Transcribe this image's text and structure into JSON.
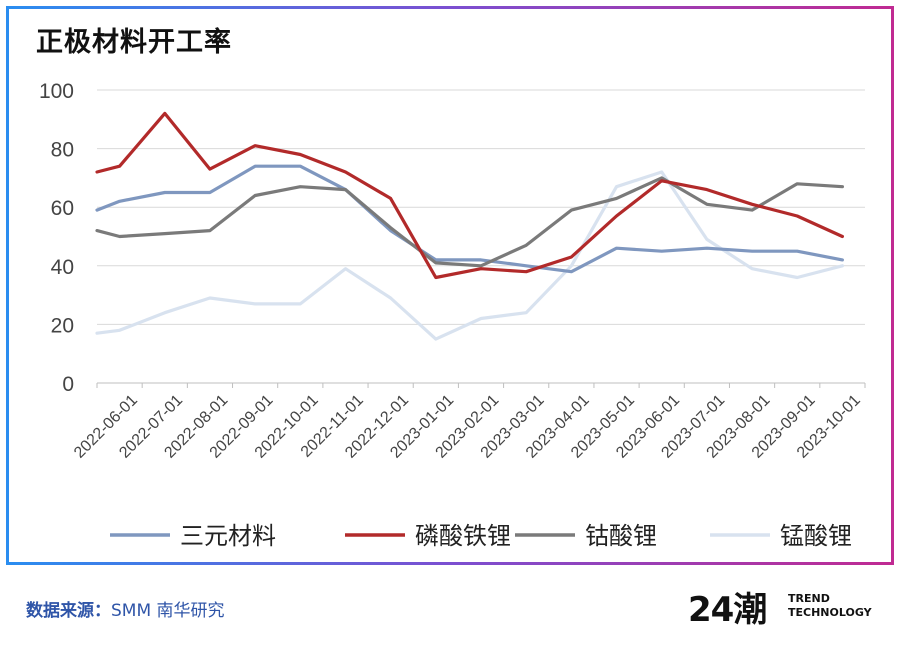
{
  "title": "正极材料开工率",
  "footer": {
    "label": "数据来源：",
    "source": "SMM 南华研究"
  },
  "logo": {
    "mark": "24潮",
    "line1": "TREND",
    "line2": "TECHNOLOGY"
  },
  "chart_data": {
    "type": "line",
    "title": "正极材料开工率",
    "xlabel": "",
    "ylabel": "",
    "ylim": [
      0,
      100
    ],
    "yticks": [
      0,
      20,
      40,
      60,
      80,
      100
    ],
    "grid": true,
    "legend": "bottom",
    "x": [
      "2022-06-01",
      "2022-06-15",
      "2022-07-01",
      "2022-08-01",
      "2022-08-15",
      "2022-09-01",
      "2022-10-01",
      "2022-11-01",
      "2022-12-01",
      "2023-01-01",
      "2023-02-01",
      "2023-03-01",
      "2023-04-01",
      "2023-05-01",
      "2023-06-01",
      "2023-07-01",
      "2023-08-01",
      "2023-09-01",
      "2023-10-01"
    ],
    "tick_labels": [
      "2022-06-01",
      "2022-07-01",
      "2022-08-01",
      "2022-09-01",
      "2022-10-01",
      "2022-11-01",
      "2022-12-01",
      "2023-01-01",
      "2023-02-01",
      "2023-03-01",
      "2023-04-01",
      "2023-05-01",
      "2023-06-01",
      "2023-07-01",
      "2023-08-01",
      "2023-09-01",
      "2023-10-01"
    ],
    "series": [
      {
        "name": "三元材料",
        "color": "#7f97bf",
        "points": [
          [
            0,
            59
          ],
          [
            0.5,
            62
          ],
          [
            1.5,
            65
          ],
          [
            2.5,
            65
          ],
          [
            3.5,
            74
          ],
          [
            4.5,
            74
          ],
          [
            5.5,
            66
          ],
          [
            6.5,
            52
          ],
          [
            7.5,
            42
          ],
          [
            8.5,
            42
          ],
          [
            9.5,
            40
          ],
          [
            10.5,
            38
          ],
          [
            11.5,
            46
          ],
          [
            12.5,
            45
          ],
          [
            13.5,
            46
          ],
          [
            14.5,
            45
          ],
          [
            15.5,
            45
          ],
          [
            16.5,
            42
          ]
        ]
      },
      {
        "name": "磷酸铁锂",
        "color": "#b22a2a",
        "points": [
          [
            0,
            72
          ],
          [
            0.5,
            74
          ],
          [
            1.5,
            92
          ],
          [
            2.5,
            73
          ],
          [
            3.5,
            81
          ],
          [
            4.5,
            78
          ],
          [
            5.5,
            72
          ],
          [
            6.5,
            63
          ],
          [
            7.5,
            36
          ],
          [
            8.5,
            39
          ],
          [
            9.5,
            38
          ],
          [
            10.5,
            43
          ],
          [
            11.5,
            57
          ],
          [
            12.5,
            69
          ],
          [
            13.5,
            66
          ],
          [
            14.5,
            61
          ],
          [
            15.5,
            57
          ],
          [
            16.5,
            50
          ]
        ]
      },
      {
        "name": "钴酸锂",
        "color": "#7a7a7a",
        "points": [
          [
            0,
            52
          ],
          [
            0.5,
            50
          ],
          [
            1.5,
            51
          ],
          [
            2.5,
            52
          ],
          [
            3.5,
            64
          ],
          [
            4.5,
            67
          ],
          [
            5.5,
            66
          ],
          [
            6.5,
            53
          ],
          [
            7.5,
            41
          ],
          [
            8.5,
            40
          ],
          [
            9.5,
            47
          ],
          [
            10.5,
            59
          ],
          [
            11.5,
            63
          ],
          [
            12.5,
            70
          ],
          [
            13.5,
            61
          ],
          [
            14.5,
            59
          ],
          [
            15.5,
            68
          ],
          [
            16.5,
            67
          ]
        ]
      },
      {
        "name": "锰酸锂",
        "color": "#d8e2ef",
        "points": [
          [
            0,
            17
          ],
          [
            0.5,
            18
          ],
          [
            1.5,
            24
          ],
          [
            2.5,
            29
          ],
          [
            3.5,
            27
          ],
          [
            4.5,
            27
          ],
          [
            5.5,
            39
          ],
          [
            6.5,
            29
          ],
          [
            7.5,
            15
          ],
          [
            8.5,
            22
          ],
          [
            9.5,
            24
          ],
          [
            10.5,
            40
          ],
          [
            11.5,
            67
          ],
          [
            12.5,
            72
          ],
          [
            13.5,
            49
          ],
          [
            14.5,
            39
          ],
          [
            15.5,
            36
          ],
          [
            16.5,
            40
          ]
        ]
      }
    ]
  }
}
